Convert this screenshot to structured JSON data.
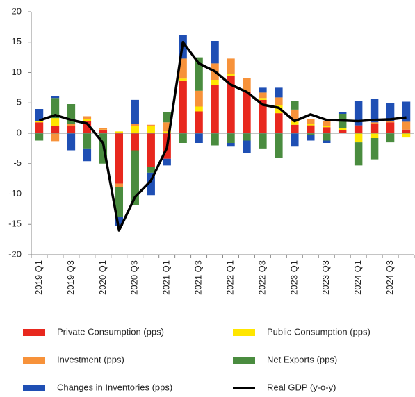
{
  "chart_data": {
    "type": "bar",
    "categories": [
      "2019 Q1",
      null,
      "2019 Q3",
      null,
      "2020 Q1",
      null,
      "2020 Q3",
      null,
      "2021 Q1",
      null,
      "2021 Q3",
      null,
      "2022 Q1",
      null,
      "2022 Q3",
      null,
      "2023 Q1",
      null,
      "2023 Q3",
      null,
      "2024 Q1",
      null,
      "2024 Q3",
      null
    ],
    "series": [
      {
        "name": "Private Consumption (pps)",
        "color": "#e8281e",
        "values": [
          1.8,
          1.2,
          1.2,
          2.0,
          0.5,
          -8.3,
          -2.8,
          -5.5,
          -4.2,
          8.7,
          3.6,
          8.0,
          9.5,
          6.8,
          5.5,
          3.3,
          1.4,
          1.3,
          1.0,
          0.5,
          1.3,
          1.5,
          1.8,
          0.6
        ]
      },
      {
        "name": "Public Consumption (pps)",
        "color": "#ffe600",
        "values": [
          0.2,
          1.3,
          0,
          0.3,
          0.1,
          0.3,
          1.2,
          1.2,
          0.3,
          0.3,
          0.8,
          0.8,
          0.3,
          0,
          0.3,
          1.3,
          0.5,
          0.3,
          0.2,
          0.3,
          -1.5,
          -0.8,
          0,
          -0.7
        ]
      },
      {
        "name": "Investment (pps)",
        "color": "#f7923a",
        "values": [
          0,
          -1.3,
          0.3,
          0.5,
          0.2,
          -0.5,
          0.3,
          0.2,
          1.5,
          3.3,
          2.6,
          2.7,
          2.5,
          2.3,
          0.9,
          1.3,
          2.0,
          0.7,
          0.8,
          0,
          0,
          0.3,
          0.2,
          1.3
        ]
      },
      {
        "name": "Net Exports (pps)",
        "color": "#4a8c3f",
        "values": [
          -1.2,
          3.3,
          3.3,
          -2.5,
          -5.0,
          -5.0,
          -9.0,
          -1.0,
          1.7,
          -1.6,
          5.5,
          -2.0,
          -1.6,
          -1.2,
          -2.5,
          -4.0,
          1.4,
          -0.3,
          -1.2,
          2.4,
          -3.8,
          -3.5,
          -1.5,
          0
        ]
      },
      {
        "name": "Changes in Inventories (pps)",
        "color": "#1f4fb4",
        "values": [
          2.0,
          0.3,
          -2.8,
          -2.1,
          0,
          -1.5,
          4.0,
          -3.7,
          -1.1,
          3.9,
          -1.6,
          3.7,
          -0.6,
          -2.1,
          0.8,
          1.6,
          -2.2,
          -0.9,
          -0.4,
          0.3,
          4.0,
          3.9,
          3.0,
          3.3
        ]
      },
      {
        "name": "Real GDP (y-o-y)",
        "color": "#000000",
        "type": "line",
        "values": [
          2.1,
          3.0,
          2.2,
          1.6,
          -1.6,
          -16.0,
          -10.5,
          -7.8,
          -2.4,
          15.0,
          11.5,
          10.2,
          8.0,
          6.8,
          4.7,
          4.2,
          2.0,
          3.1,
          2.2,
          2.1,
          2.0,
          2.2,
          2.3,
          2.6
        ]
      }
    ],
    "ylim": [
      -20,
      20
    ],
    "yticks": [
      -20,
      -15,
      -10,
      -5,
      0,
      5,
      10,
      15,
      20
    ]
  }
}
